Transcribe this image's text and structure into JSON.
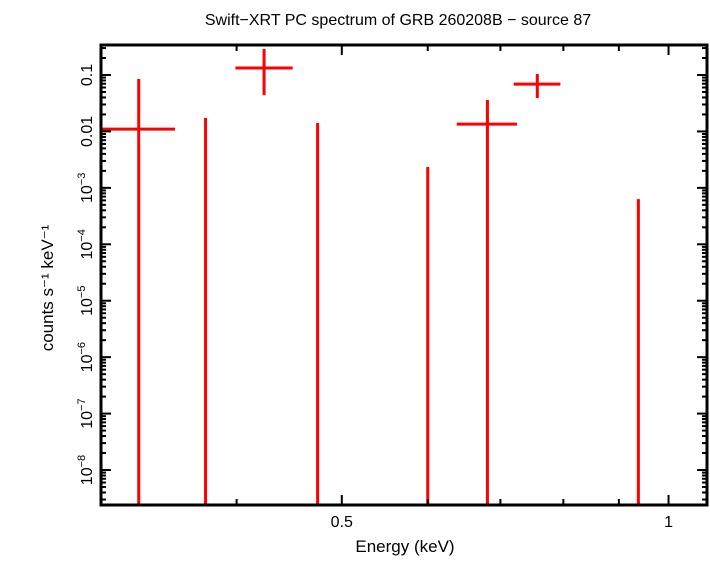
{
  "chart_data": {
    "type": "scatter",
    "title": "Swift−XRT PC spectrum of GRB 260208B − source 87",
    "xlabel": "Energy (keV)",
    "ylabel": "counts s⁻¹ keV⁻¹",
    "x_scale": "log",
    "y_scale": "log",
    "xlim": [
      0.3,
      1.085
    ],
    "ylim": [
      2.4e-09,
      0.34
    ],
    "grid": false,
    "x_ticks": [
      {
        "value": 0.5,
        "label": "0.5"
      },
      {
        "value": 1,
        "label": "1"
      }
    ],
    "x_minor_ticks": [
      0.4,
      0.6,
      0.7,
      0.8,
      0.9
    ],
    "y_ticks": [
      {
        "value": 0.1,
        "label": "0.1"
      },
      {
        "value": 0.01,
        "label": "0.01"
      },
      {
        "value": 0.001,
        "label": "10",
        "exp": "−3"
      },
      {
        "value": 0.0001,
        "label": "10",
        "exp": "−4"
      },
      {
        "value": 1e-05,
        "label": "10",
        "exp": "−5"
      },
      {
        "value": 1e-06,
        "label": "10",
        "exp": "−6"
      },
      {
        "value": 1e-07,
        "label": "10",
        "exp": "−7"
      },
      {
        "value": 1e-08,
        "label": "10",
        "exp": "−8"
      }
    ],
    "series_color": "#ff0000",
    "points": [
      {
        "x": 0.325,
        "xlo": 0.3,
        "xhi": 0.351,
        "y": 0.011,
        "ylo": null,
        "yhi": 0.085
      },
      {
        "x": 0.3745,
        "xlo": null,
        "xhi": null,
        "y": null,
        "ylo": null,
        "yhi": 0.0173
      },
      {
        "x": 0.424,
        "xlo": 0.399,
        "xhi": 0.4505,
        "y": 0.133,
        "ylo": 0.044,
        "yhi": 0.289
      },
      {
        "x": 0.475,
        "xlo": null,
        "xhi": null,
        "y": null,
        "ylo": null,
        "yhi": 0.0141
      },
      {
        "x": 0.6,
        "xlo": null,
        "xhi": null,
        "y": null,
        "ylo": null,
        "yhi": 0.00234
      },
      {
        "x": 0.681,
        "xlo": 0.638,
        "xhi": 0.725,
        "y": 0.0135,
        "ylo": null,
        "yhi": 0.036
      },
      {
        "x": 0.757,
        "xlo": 0.72,
        "xhi": 0.795,
        "y": 0.069,
        "ylo": 0.039,
        "yhi": 0.104
      },
      {
        "x": 0.938,
        "xlo": null,
        "xhi": null,
        "y": null,
        "ylo": null,
        "yhi": 0.00063
      }
    ]
  }
}
